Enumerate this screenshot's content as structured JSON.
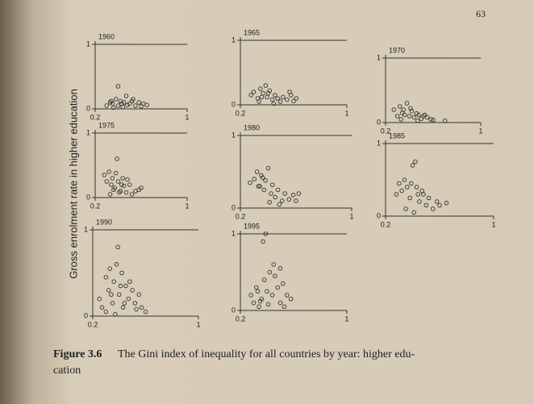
{
  "page_number": "63",
  "ylabel": "Gross enrolment rate in higher education",
  "caption": {
    "label": "Figure 3.6",
    "lines": [
      "The Gini index of inequality for all countries by year: higher edu-",
      "cation"
    ]
  },
  "chart_data": [
    {
      "type": "scatter",
      "title": "1960",
      "xlim": [
        0.2,
        1
      ],
      "ylim": [
        0,
        1
      ],
      "xticks": [
        0.2,
        1
      ],
      "yticks": [
        0,
        1
      ],
      "x": [
        0.3,
        0.33,
        0.35,
        0.38,
        0.4,
        0.42,
        0.45,
        0.48,
        0.5,
        0.52,
        0.55,
        0.58,
        0.6,
        0.62,
        0.36,
        0.44,
        0.4,
        0.47,
        0.53,
        0.65,
        0.34,
        0.43
      ],
      "y": [
        0.05,
        0.1,
        0.08,
        0.15,
        0.05,
        0.12,
        0.1,
        0.06,
        0.08,
        0.12,
        0.05,
        0.1,
        0.04,
        0.08,
        0.02,
        0.03,
        0.35,
        0.2,
        0.15,
        0.06,
        0.12,
        0.08
      ]
    },
    {
      "type": "scatter",
      "title": "1965",
      "xlim": [
        0.2,
        1
      ],
      "ylim": [
        0,
        1
      ],
      "xticks": [
        0.2,
        1
      ],
      "yticks": [
        0,
        1
      ],
      "x": [
        0.28,
        0.3,
        0.33,
        0.35,
        0.37,
        0.4,
        0.42,
        0.44,
        0.46,
        0.48,
        0.5,
        0.52,
        0.55,
        0.57,
        0.6,
        0.62,
        0.34,
        0.39,
        0.45,
        0.41,
        0.36,
        0.58
      ],
      "y": [
        0.15,
        0.2,
        0.1,
        0.25,
        0.18,
        0.12,
        0.22,
        0.08,
        0.15,
        0.1,
        0.05,
        0.12,
        0.08,
        0.2,
        0.06,
        0.1,
        0.05,
        0.3,
        0.02,
        0.18,
        0.12,
        0.15
      ]
    },
    {
      "type": "scatter",
      "title": "1970",
      "xlim": [
        0.2,
        1
      ],
      "ylim": [
        0,
        1
      ],
      "xticks": [
        0.2,
        1
      ],
      "yticks": [
        0,
        1
      ],
      "x": [
        0.27,
        0.3,
        0.32,
        0.34,
        0.36,
        0.38,
        0.4,
        0.42,
        0.44,
        0.46,
        0.48,
        0.5,
        0.52,
        0.55,
        0.58,
        0.6,
        0.35,
        0.41,
        0.47,
        0.33,
        0.53,
        0.7
      ],
      "y": [
        0.2,
        0.1,
        0.25,
        0.15,
        0.12,
        0.3,
        0.1,
        0.18,
        0.08,
        0.14,
        0.12,
        0.06,
        0.1,
        0.08,
        0.05,
        0.04,
        0.2,
        0.22,
        0.03,
        0.05,
        0.12,
        0.03
      ]
    },
    {
      "type": "scatter",
      "title": "1975",
      "xlim": [
        0.2,
        1
      ],
      "ylim": [
        0,
        1
      ],
      "xticks": [
        0.2,
        1
      ],
      "yticks": [
        0,
        1
      ],
      "x": [
        0.28,
        0.3,
        0.32,
        0.34,
        0.35,
        0.37,
        0.38,
        0.4,
        0.42,
        0.44,
        0.45,
        0.47,
        0.5,
        0.52,
        0.55,
        0.58,
        0.33,
        0.39,
        0.43,
        0.36,
        0.48,
        0.6,
        0.41
      ],
      "y": [
        0.35,
        0.25,
        0.4,
        0.2,
        0.3,
        0.15,
        0.38,
        0.25,
        0.1,
        0.3,
        0.18,
        0.08,
        0.2,
        0.05,
        0.1,
        0.12,
        0.05,
        0.6,
        0.2,
        0.12,
        0.28,
        0.15,
        0.08
      ]
    },
    {
      "type": "scatter",
      "title": "1980",
      "xlim": [
        0.2,
        1
      ],
      "ylim": [
        0,
        1
      ],
      "xticks": [
        0.2,
        1
      ],
      "yticks": [
        0,
        1
      ],
      "x": [
        0.27,
        0.3,
        0.32,
        0.34,
        0.35,
        0.37,
        0.38,
        0.4,
        0.42,
        0.43,
        0.45,
        0.47,
        0.5,
        0.52,
        0.55,
        0.58,
        0.6,
        0.33,
        0.36,
        0.41,
        0.48,
        0.62
      ],
      "y": [
        0.35,
        0.4,
        0.5,
        0.3,
        0.45,
        0.25,
        0.38,
        0.55,
        0.2,
        0.32,
        0.15,
        0.25,
        0.1,
        0.2,
        0.12,
        0.18,
        0.1,
        0.3,
        0.42,
        0.08,
        0.05,
        0.2
      ]
    },
    {
      "type": "scatter",
      "title": "1985",
      "xlim": [
        0.2,
        1
      ],
      "ylim": [
        0,
        1
      ],
      "xticks": [
        0.2,
        1
      ],
      "yticks": [
        0,
        1
      ],
      "x": [
        0.28,
        0.3,
        0.32,
        0.34,
        0.36,
        0.38,
        0.4,
        0.42,
        0.44,
        0.45,
        0.47,
        0.5,
        0.52,
        0.55,
        0.58,
        0.6,
        0.35,
        0.39,
        0.41,
        0.43,
        0.48,
        0.65
      ],
      "y": [
        0.3,
        0.45,
        0.35,
        0.5,
        0.4,
        0.25,
        0.7,
        0.75,
        0.3,
        0.2,
        0.35,
        0.15,
        0.25,
        0.1,
        0.2,
        0.15,
        0.1,
        0.45,
        0.05,
        0.4,
        0.3,
        0.18
      ]
    },
    {
      "type": "scatter",
      "title": "1990",
      "xlim": [
        0.2,
        1
      ],
      "ylim": [
        0,
        1
      ],
      "xticks": [
        0.2,
        1
      ],
      "yticks": [
        0,
        1
      ],
      "x": [
        0.25,
        0.27,
        0.3,
        0.32,
        0.33,
        0.35,
        0.36,
        0.38,
        0.4,
        0.42,
        0.43,
        0.45,
        0.47,
        0.5,
        0.52,
        0.55,
        0.57,
        0.6,
        0.3,
        0.34,
        0.39,
        0.44,
        0.48,
        0.53,
        0.37,
        0.41
      ],
      "y": [
        0.2,
        0.1,
        0.45,
        0.3,
        0.55,
        0.15,
        0.4,
        0.6,
        0.25,
        0.5,
        0.1,
        0.35,
        0.2,
        0.3,
        0.15,
        0.25,
        0.1,
        0.05,
        0.05,
        0.25,
        0.8,
        0.15,
        0.4,
        0.08,
        0.02,
        0.35
      ]
    },
    {
      "type": "scatter",
      "title": "1995",
      "xlim": [
        0.2,
        1
      ],
      "ylim": [
        0,
        1
      ],
      "xticks": [
        0.2,
        1
      ],
      "yticks": [
        0,
        1
      ],
      "x": [
        0.28,
        0.3,
        0.32,
        0.34,
        0.36,
        0.38,
        0.4,
        0.42,
        0.44,
        0.46,
        0.48,
        0.5,
        0.52,
        0.55,
        0.58,
        0.33,
        0.37,
        0.41,
        0.45,
        0.5,
        0.39,
        0.53,
        0.35
      ],
      "y": [
        0.2,
        0.1,
        0.3,
        0.05,
        0.15,
        0.4,
        0.25,
        0.5,
        0.2,
        0.45,
        0.3,
        0.1,
        0.35,
        0.2,
        0.15,
        0.25,
        0.9,
        0.08,
        0.6,
        0.55,
        1.0,
        0.05,
        0.12
      ]
    }
  ]
}
